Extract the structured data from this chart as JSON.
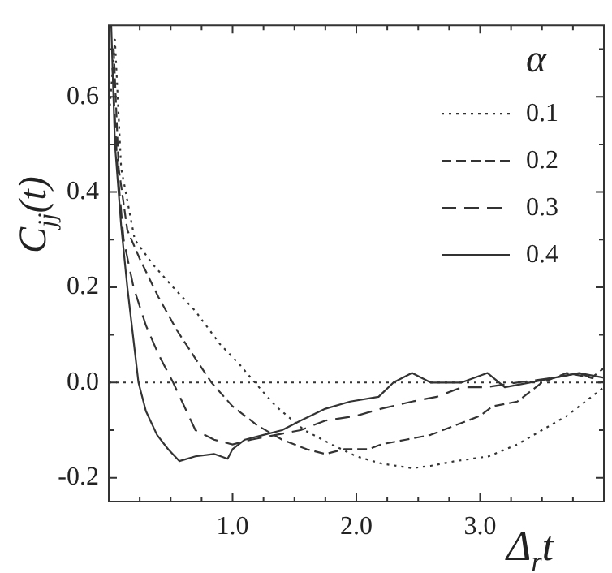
{
  "chart_data": {
    "type": "line",
    "xlabel": "Δ$_{r}$t",
    "ylabel": "C$_{jj}$(t)",
    "legend_title": "α",
    "legend": "top right",
    "grid": false,
    "marker": "none",
    "xlim": [
      0,
      4.0
    ],
    "ylim": [
      -0.25,
      0.75
    ],
    "xticks": [
      {
        "value": 0.25,
        "label": null
      },
      {
        "value": 0.5,
        "label": null
      },
      {
        "value": 0.75,
        "label": null
      },
      {
        "value": 1,
        "label": "1.0"
      },
      {
        "value": 1.25,
        "label": null
      },
      {
        "value": 1.5,
        "label": null
      },
      {
        "value": 1.75,
        "label": null
      },
      {
        "value": 2,
        "label": "2.0"
      },
      {
        "value": 2.25,
        "label": null
      },
      {
        "value": 2.5,
        "label": null
      },
      {
        "value": 2.75,
        "label": null
      },
      {
        "value": 3,
        "label": "3.0"
      },
      {
        "value": 3.25,
        "label": null
      },
      {
        "value": 3.5,
        "label": null
      },
      {
        "value": 3.75,
        "label": null
      }
    ],
    "yticks": [
      {
        "value": -0.2,
        "label": "-0.2"
      },
      {
        "value": -0.1,
        "label": null
      },
      {
        "value": 0,
        "label": "0.0"
      },
      {
        "value": 0.1,
        "label": null
      },
      {
        "value": 0.2,
        "label": "0.2"
      },
      {
        "value": 0.3,
        "label": null
      },
      {
        "value": 0.4,
        "label": "0.4"
      },
      {
        "value": 0.5,
        "label": null
      },
      {
        "value": 0.6,
        "label": "0.6"
      },
      {
        "value": 0.7,
        "label": null
      }
    ],
    "ref_lines": [
      {
        "axis": "y",
        "value": 0,
        "line_style": "dotted",
        "color": "#333333"
      }
    ],
    "series": [
      {
        "name": "0.1",
        "color": "#333333",
        "line_style": "dotted",
        "x": [
          0.0,
          0.05,
          0.1,
          0.21,
          0.35,
          0.52,
          0.7,
          0.9,
          1.05,
          1.18,
          1.35,
          1.58,
          1.8,
          2.0,
          2.2,
          2.45,
          2.6,
          2.8,
          3.07,
          3.3,
          3.5,
          3.7,
          3.85,
          4.0
        ],
        "values": [
          0.55,
          0.72,
          0.45,
          0.3,
          0.25,
          0.2,
          0.15,
          0.08,
          0.04,
          0.0,
          -0.05,
          -0.1,
          -0.13,
          -0.155,
          -0.17,
          -0.18,
          -0.175,
          -0.165,
          -0.155,
          -0.13,
          -0.1,
          -0.07,
          -0.04,
          -0.01
        ]
      },
      {
        "name": "0.2",
        "color": "#333333",
        "line_style": "dashdot",
        "x": [
          0.04,
          0.08,
          0.15,
          0.25,
          0.4,
          0.55,
          0.7,
          0.83,
          1.0,
          1.2,
          1.4,
          1.6,
          1.75,
          1.9,
          2.1,
          2.2,
          2.4,
          2.6,
          2.8,
          3.0,
          3.1,
          3.3,
          3.5,
          3.7,
          3.9,
          4.0
        ],
        "values": [
          0.7,
          0.45,
          0.32,
          0.26,
          0.18,
          0.11,
          0.05,
          0.0,
          -0.05,
          -0.09,
          -0.12,
          -0.14,
          -0.15,
          -0.14,
          -0.14,
          -0.13,
          -0.12,
          -0.11,
          -0.09,
          -0.07,
          -0.05,
          -0.04,
          0.0,
          0.02,
          0.01,
          0.03
        ]
      },
      {
        "name": "0.3",
        "color": "#333333",
        "line_style": "dashed",
        "x": [
          0.03,
          0.07,
          0.12,
          0.2,
          0.3,
          0.4,
          0.52,
          0.7,
          0.85,
          1.0,
          1.15,
          1.35,
          1.55,
          1.75,
          2.0,
          2.2,
          2.45,
          2.65,
          2.85,
          3.05,
          3.3,
          3.6,
          3.8,
          4.0
        ],
        "values": [
          0.66,
          0.45,
          0.3,
          0.2,
          0.12,
          0.06,
          0.0,
          -0.1,
          -0.12,
          -0.13,
          -0.12,
          -0.11,
          -0.1,
          -0.08,
          -0.07,
          -0.055,
          -0.04,
          -0.03,
          -0.01,
          -0.01,
          0.0,
          0.01,
          0.02,
          0.0
        ]
      },
      {
        "name": "0.4",
        "color": "#333333",
        "line_style": "solid",
        "x": [
          0.02,
          0.05,
          0.1,
          0.15,
          0.24,
          0.3,
          0.39,
          0.48,
          0.57,
          0.7,
          0.85,
          0.96,
          1.0,
          1.1,
          1.25,
          1.4,
          1.55,
          1.75,
          1.95,
          2.18,
          2.3,
          2.45,
          2.6,
          2.85,
          3.06,
          3.2,
          3.4,
          3.6,
          3.8,
          4.0
        ],
        "values": [
          0.75,
          0.5,
          0.33,
          0.2,
          0.0,
          -0.06,
          -0.11,
          -0.14,
          -0.165,
          -0.155,
          -0.15,
          -0.16,
          -0.14,
          -0.12,
          -0.11,
          -0.1,
          -0.08,
          -0.055,
          -0.04,
          -0.03,
          0.0,
          0.02,
          0.0,
          0.0,
          0.02,
          -0.01,
          0.0,
          0.01,
          0.02,
          0.01
        ]
      }
    ]
  }
}
